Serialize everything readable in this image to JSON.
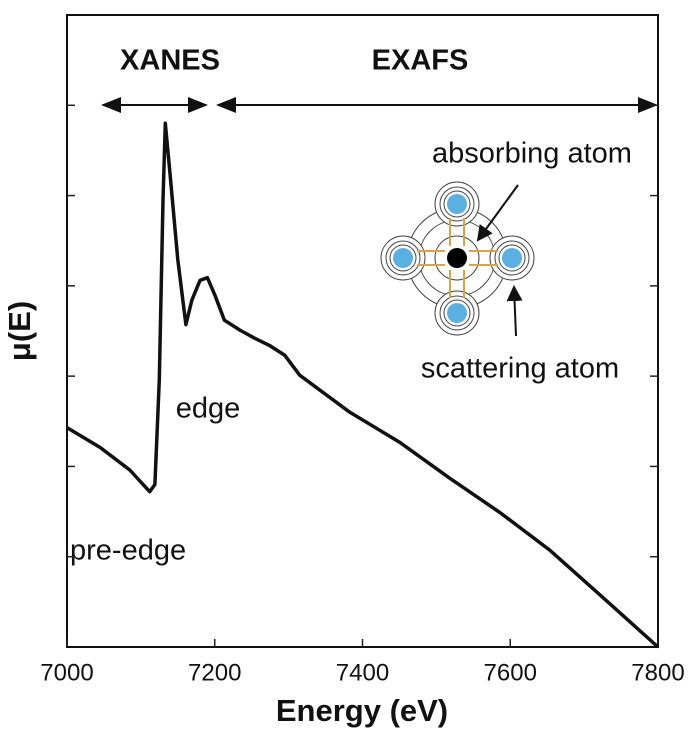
{
  "chart_data": {
    "type": "line",
    "xlabel": "Energy (eV)",
    "ylabel": "μ(E)",
    "x": [
      7000,
      7045,
      7085,
      7112,
      7119,
      7125,
      7130,
      7133,
      7139,
      7150,
      7161,
      7169,
      7180,
      7190,
      7200,
      7213,
      7234,
      7254,
      7274,
      7295,
      7315,
      7383,
      7450,
      7518,
      7586,
      7654,
      7721,
      7800
    ],
    "values": [
      2.43,
      2.21,
      1.96,
      1.72,
      1.8,
      2.96,
      4.95,
      5.8,
      5.28,
      4.29,
      3.57,
      3.84,
      4.06,
      4.09,
      3.9,
      3.62,
      3.51,
      3.42,
      3.34,
      3.23,
      3.01,
      2.6,
      2.27,
      1.87,
      1.49,
      1.07,
      0.58,
      0
    ],
    "color": "#111111",
    "xlim": [
      7000,
      7800
    ],
    "xticks": [
      7000,
      7200,
      7400,
      7600,
      7800
    ],
    "ylim": [
      0,
      7
    ],
    "yticks": [
      1,
      2,
      3,
      4,
      5,
      6
    ],
    "annotations": [
      "XANES",
      "EXAFS",
      "edge",
      "pre-edge",
      "absorbing atom",
      "scattering atom"
    ]
  }
}
